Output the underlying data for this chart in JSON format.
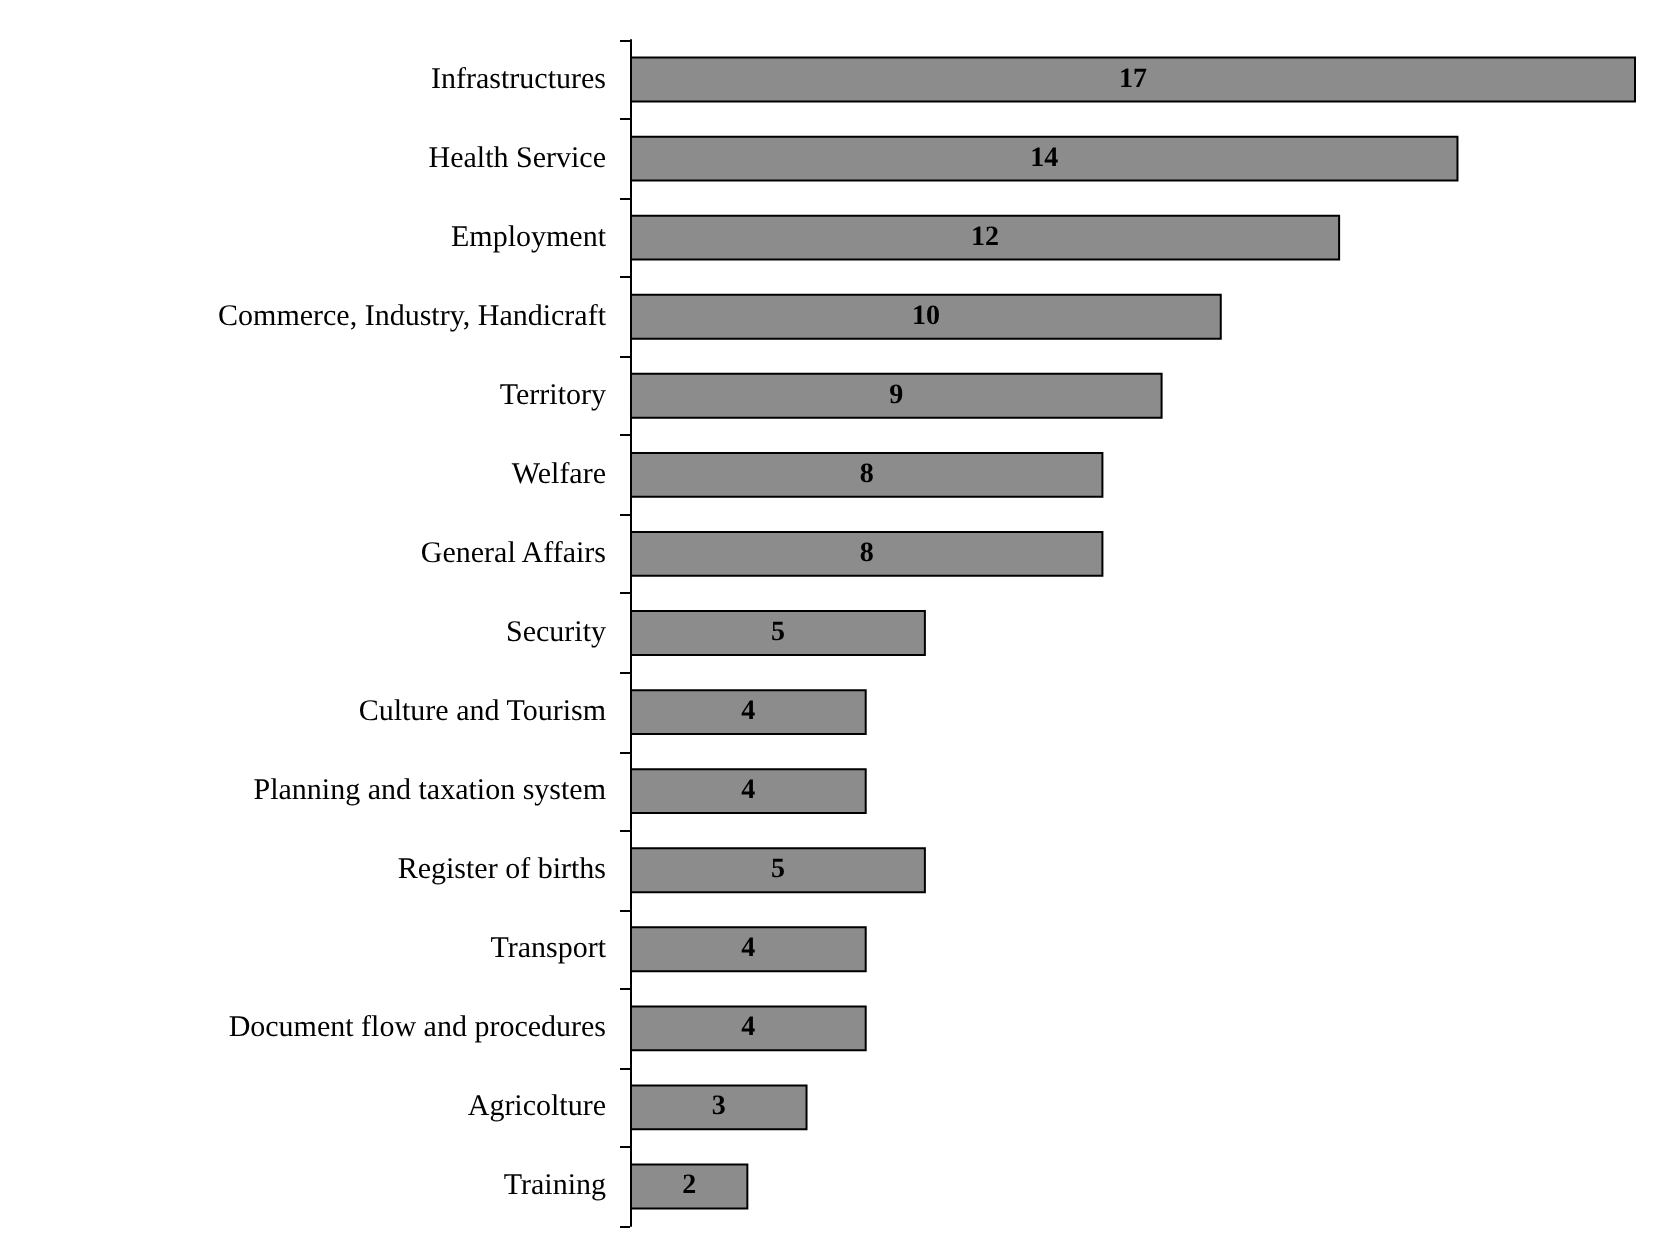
{
  "chart_data": {
    "type": "bar",
    "orientation": "horizontal",
    "categories": [
      "Infrastructures",
      "Health Service",
      "Employment",
      "Commerce, Industry, Handicraft",
      "Territory",
      "Welfare",
      "General Affairs",
      "Security",
      "Culture and Tourism",
      "Planning and taxation system",
      "Register of births",
      "Transport",
      "Document flow and procedures",
      "Agricolture",
      "Training"
    ],
    "values": [
      17,
      14,
      12,
      10,
      9,
      8,
      8,
      5,
      4,
      4,
      5,
      4,
      4,
      3,
      2
    ],
    "color": "#8c8c8c",
    "data_labels": true
  }
}
